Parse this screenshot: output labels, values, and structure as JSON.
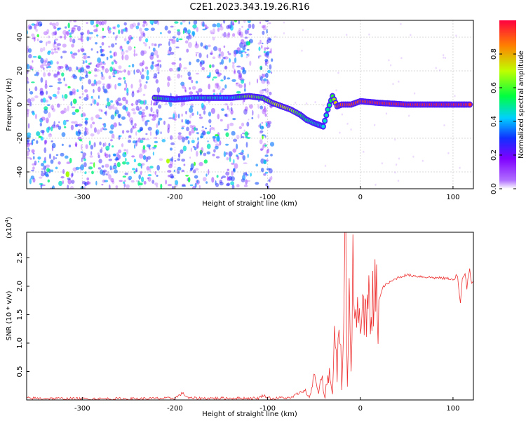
{
  "title": "C2E1.2023.343.19.26.R16",
  "chart_data": [
    {
      "type": "heatmap",
      "xlabel": "Height of straight line (km)",
      "ylabel": "Frequency (Hz)",
      "xlim": [
        -360,
        122
      ],
      "ylim": [
        -50,
        50
      ],
      "xticks": [
        -300,
        -200,
        -100,
        0,
        100
      ],
      "yticks": [
        -40,
        -20,
        0,
        20,
        40
      ],
      "grid": true,
      "colorbar": {
        "label": "Normalized spectral amplitude",
        "range": [
          0,
          1
        ],
        "ticks": [
          "0.0",
          "0.2",
          "0.4",
          "0.6",
          "0.8"
        ],
        "colormap": "rainbow",
        "stops": [
          "#ffffff",
          "#7f00ff",
          "#0040ff",
          "#00d0ff",
          "#00ff40",
          "#c0ff00",
          "#ff8000",
          "#ff0040"
        ]
      },
      "signal_track": {
        "x": [
          -222,
          -200,
          -180,
          -160,
          -140,
          -120,
          -105,
          -95,
          -85,
          -75,
          -65,
          -58,
          -50,
          -45,
          -40,
          -35,
          -30,
          -25,
          -20,
          -10,
          0,
          20,
          50,
          80,
          100,
          120
        ],
        "frequency": [
          4,
          3,
          4,
          4,
          4,
          5,
          4,
          1,
          -1,
          -3,
          -6,
          -9,
          -11,
          -12,
          -13,
          -3,
          5,
          -1,
          0,
          0,
          2,
          1,
          0,
          0,
          0,
          0
        ],
        "amplitude": [
          0.65,
          0.35,
          0.45,
          0.5,
          0.4,
          0.7,
          0.6,
          0.7,
          0.75,
          0.7,
          0.6,
          0.55,
          0.5,
          0.5,
          0.45,
          0.5,
          0.6,
          0.85,
          0.9,
          0.92,
          0.9,
          0.95,
          0.95,
          0.95,
          0.95,
          0.95
        ]
      },
      "noise": {
        "scatter_x_range": [
          -360,
          -95
        ],
        "sparse_x_range": [
          -95,
          122
        ],
        "typical_amplitude": 0.15
      }
    },
    {
      "type": "line",
      "xlabel": "Height of straight line (km)",
      "ylabel": "SNR (10 * v/v)",
      "y_multiplier": "(x10",
      "y_multiplier_exp": "4",
      "y_multiplier_close": ")",
      "xlim": [
        -360,
        122
      ],
      "ylim": [
        0,
        29500
      ],
      "xticks": [
        -300,
        -200,
        -100,
        0,
        100
      ],
      "yticks": [
        "0.5",
        "1.0",
        "1.5",
        "2.0",
        "2.5"
      ],
      "ytick_values": [
        5000,
        10000,
        15000,
        20000,
        25000
      ],
      "grid": false,
      "series": [
        {
          "color": "#ee3333",
          "x": [
            -360,
            -300,
            -250,
            -200,
            -192,
            -185,
            -150,
            -110,
            -105,
            -95,
            -85,
            -75,
            -70,
            -60,
            -55,
            -50,
            -45,
            -42,
            -38,
            -35,
            -30,
            -28,
            -25,
            -22,
            -20,
            -18,
            -16,
            -14,
            -12,
            -10,
            -8,
            -5,
            -2,
            0,
            5,
            10,
            15,
            20,
            25,
            30,
            40,
            50,
            60,
            80,
            100,
            105,
            108,
            110,
            112,
            115,
            118,
            120,
            122
          ],
          "y": [
            300,
            200,
            200,
            300,
            1200,
            300,
            300,
            300,
            800,
            200,
            400,
            300,
            900,
            1700,
            600,
            5000,
            900,
            3800,
            400,
            5600,
            800,
            13000,
            3000,
            16500,
            1200,
            17000,
            29500,
            4000,
            15500,
            9000,
            20500,
            12000,
            16000,
            17000,
            13500,
            15500,
            18500,
            17500,
            20000,
            20500,
            21500,
            22000,
            21800,
            21500,
            21300,
            21500,
            17500,
            21800,
            22500,
            19500,
            23500,
            20500,
            21000
          ]
        }
      ]
    }
  ]
}
